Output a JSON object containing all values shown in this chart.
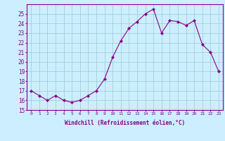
{
  "x": [
    0,
    1,
    2,
    3,
    4,
    5,
    6,
    7,
    8,
    9,
    10,
    11,
    12,
    13,
    14,
    15,
    16,
    17,
    18,
    19,
    20,
    21,
    22,
    23
  ],
  "y": [
    17,
    16.5,
    16,
    16.5,
    16,
    15.8,
    16,
    16.5,
    17,
    18.2,
    20.5,
    22.2,
    23.5,
    24.2,
    25.0,
    25.5,
    23.0,
    24.3,
    24.2,
    23.8,
    24.3,
    21.8,
    21.0,
    19.0
  ],
  "line_color": "#880088",
  "marker": "D",
  "marker_size": 2.0,
  "bg_color": "#cceeff",
  "grid_color": "#99cccc",
  "xlabel": "Windchill (Refroidissement éolien,°C)",
  "ylim": [
    15,
    26
  ],
  "yticks": [
    15,
    16,
    17,
    18,
    19,
    20,
    21,
    22,
    23,
    24,
    25
  ],
  "xlim": [
    -0.5,
    23.5
  ],
  "xticks": [
    0,
    1,
    2,
    3,
    4,
    5,
    6,
    7,
    8,
    9,
    10,
    11,
    12,
    13,
    14,
    15,
    16,
    17,
    18,
    19,
    20,
    21,
    22,
    23
  ],
  "xtick_labels": [
    "0",
    "1",
    "2",
    "3",
    "4",
    "5",
    "6",
    "7",
    "8",
    "9",
    "10",
    "11",
    "12",
    "13",
    "14",
    "15",
    "16",
    "17",
    "18",
    "19",
    "20",
    "21",
    "22",
    "23"
  ]
}
